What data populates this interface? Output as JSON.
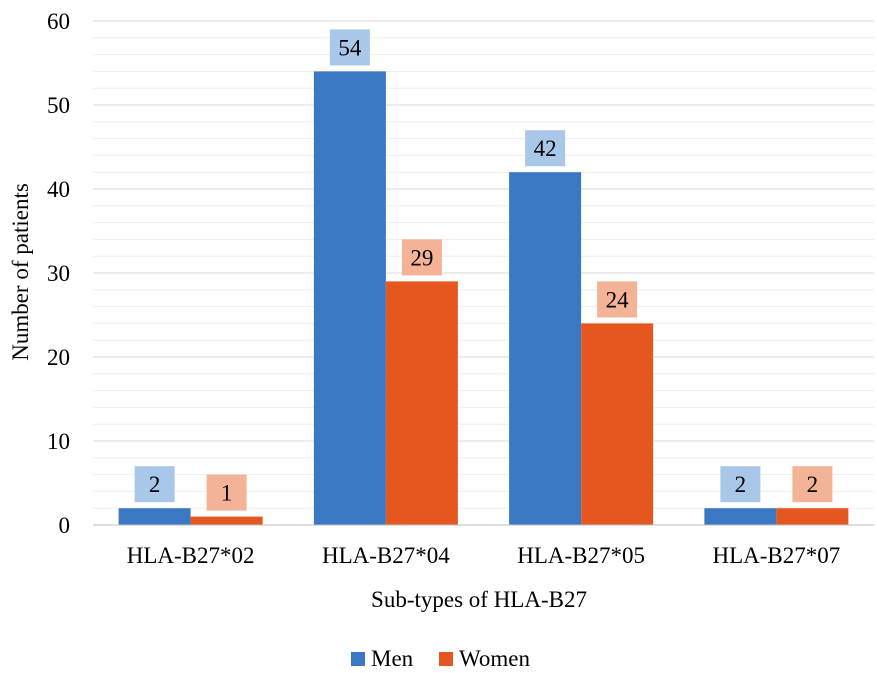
{
  "chart_data": {
    "type": "bar",
    "title": "",
    "xlabel": "Sub-types of HLA-B27",
    "ylabel": "Number of patients",
    "categories": [
      "HLA-B27*02",
      "HLA-B27*04",
      "HLA-B27*05",
      "HLA-B27*07"
    ],
    "series": [
      {
        "name": "Men",
        "values": [
          2,
          54,
          42,
          2
        ],
        "color": "#3a78c3",
        "label_bg": "#a9c7e8"
      },
      {
        "name": "Women",
        "values": [
          1,
          29,
          24,
          2
        ],
        "color": "#e4571f",
        "label_bg": "#f4b396"
      }
    ],
    "ylim": [
      0,
      60
    ],
    "yticks": [
      0,
      10,
      20,
      30,
      40,
      50,
      60
    ],
    "grid": true,
    "legend_position": "bottom"
  }
}
